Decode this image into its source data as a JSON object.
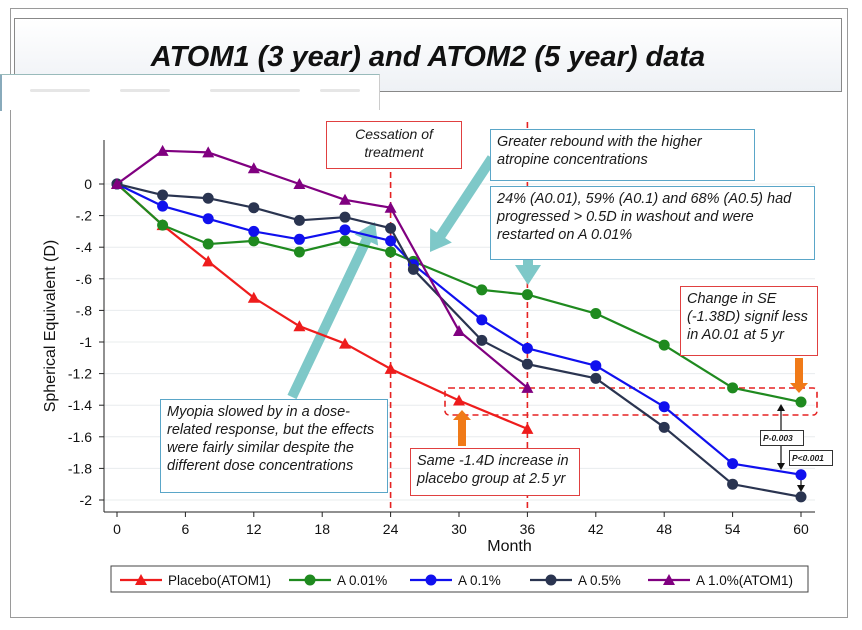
{
  "title": "ATOM1 (3 year) and ATOM2 (5 year) data",
  "annotations": {
    "cessation": "Cessation of treatment",
    "rebound": "Greater rebound with the higher atropine concentrations",
    "progressed": "24% (A0.01), 59% (A0.1) and 68% (A0.5) had progressed > 0.5D in washout and were restarted on A 0.01%",
    "change": "Change in SE (-1.38D) signif less in A0.01 at 5 yr",
    "myopia": "Myopia slowed by in a dose-related response, but the effects were fairly similar despite the different dose concentrations",
    "placebo": "Same -1.4D increase in placebo group at 2.5 yr",
    "p1": "P-0.003",
    "p2": "P<0.001"
  },
  "colors": {
    "placebo": "#ee1c1c",
    "a001": "#1f8a1f",
    "a01": "#1010ee",
    "a05": "#2a3450",
    "a1": "#800080",
    "dash": "#e52222",
    "teal": "#7ec8c8",
    "orange": "#f07a18"
  },
  "chart_data": {
    "type": "line",
    "xlabel": "Month",
    "ylabel": "Spherical Equivalent (D)",
    "xlim": [
      0,
      60
    ],
    "ylim": [
      -2.0,
      0.2
    ],
    "xticks": [
      0,
      6,
      12,
      18,
      24,
      30,
      36,
      42,
      48,
      54,
      60
    ],
    "yticks": [
      0,
      -0.2,
      -0.4,
      -0.6,
      -0.8,
      -1,
      -1.2,
      -1.4,
      -1.6,
      -1.8,
      -2
    ],
    "ytick_labels": [
      "0",
      "-.2",
      "-.4",
      "-.6",
      "-.8",
      "-1",
      "-1.2",
      "-1.4",
      "-1.6",
      "-1.8",
      "-2"
    ],
    "legend_position": "bottom",
    "vlines": [
      24,
      36
    ],
    "series": [
      {
        "name": "Placebo(ATOM1)",
        "marker": "triangle",
        "color": "#ee1c1c",
        "x": [
          0,
          4,
          8,
          12,
          16,
          20,
          24,
          30,
          36
        ],
        "y": [
          0,
          -0.26,
          -0.49,
          -0.72,
          -0.9,
          -1.01,
          -1.17,
          -1.37,
          -1.55
        ]
      },
      {
        "name": "A 0.01%",
        "marker": "circle",
        "color": "#1f8a1f",
        "x": [
          0,
          4,
          8,
          12,
          16,
          20,
          24,
          26,
          32,
          36,
          42,
          48,
          54,
          60
        ],
        "y": [
          0,
          -0.26,
          -0.38,
          -0.36,
          -0.43,
          -0.36,
          -0.43,
          -0.49,
          -0.67,
          -0.7,
          -0.82,
          -1.02,
          -1.29,
          -1.38
        ]
      },
      {
        "name": "A 0.1%",
        "marker": "circle",
        "color": "#1010ee",
        "x": [
          0,
          4,
          8,
          12,
          16,
          20,
          24,
          26,
          32,
          36,
          42,
          48,
          54,
          60
        ],
        "y": [
          0,
          -0.14,
          -0.22,
          -0.3,
          -0.35,
          -0.29,
          -0.36,
          -0.51,
          -0.86,
          -1.04,
          -1.15,
          -1.41,
          -1.77,
          -1.84
        ]
      },
      {
        "name": "A 0.5%",
        "marker": "circle",
        "color": "#2a3450",
        "x": [
          0,
          4,
          8,
          12,
          16,
          20,
          24,
          26,
          32,
          36,
          42,
          48,
          54,
          60
        ],
        "y": [
          0,
          -0.07,
          -0.09,
          -0.15,
          -0.23,
          -0.21,
          -0.28,
          -0.54,
          -0.99,
          -1.14,
          -1.23,
          -1.54,
          -1.9,
          -1.98
        ]
      },
      {
        "name": "A 1.0%(ATOM1)",
        "marker": "triangle",
        "color": "#800080",
        "x": [
          0,
          4,
          8,
          12,
          16,
          20,
          24,
          30,
          36
        ],
        "y": [
          0,
          0.21,
          0.2,
          0.1,
          0.0,
          -0.1,
          -0.15,
          -0.93,
          -1.29
        ]
      }
    ]
  }
}
